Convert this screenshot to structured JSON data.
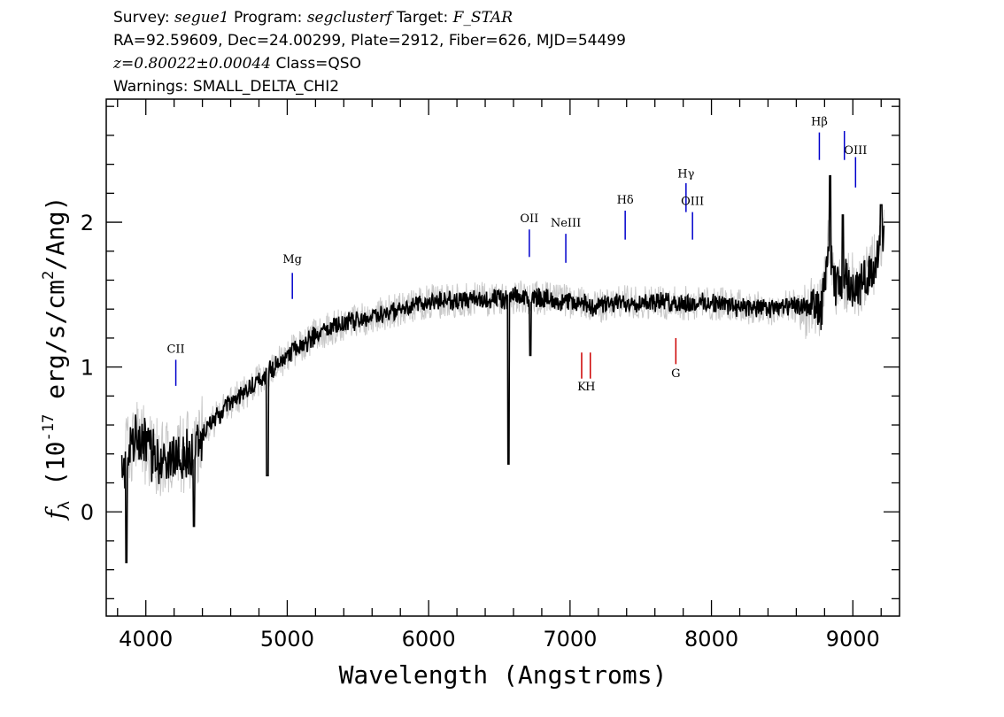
{
  "header": {
    "line1": {
      "survey_label": "Survey:",
      "survey": "segue1",
      "program_label": "Program:",
      "program": "segclusterf",
      "target_label": "Target:",
      "target": "F_STAR"
    },
    "line2": "RA=92.59609, Dec=24.00299, Plate=2912, Fiber=626, MJD=54499",
    "line3": {
      "redshift": "z=0.80022±0.00044",
      "class": "Class=QSO"
    },
    "line4": "Warnings: SMALL_DELTA_CHI2"
  },
  "chart_data": {
    "type": "line",
    "xlabel": "Wavelength (Angstroms)",
    "ylabel": "f_λ (10^-17 erg/s/cm^2/Ang)",
    "ylabel_parts": {
      "f": "f",
      "sub": "λ",
      "base": " (10",
      "exp": "-17",
      "mid": " erg/s/cm",
      "exp2": "2",
      "end": "/Ang)"
    },
    "xlim": [
      3720,
      9330
    ],
    "ylim": [
      -0.72,
      2.85
    ],
    "xticks": [
      4000,
      5000,
      6000,
      7000,
      8000,
      9000
    ],
    "xtick_labels": [
      "4000",
      "5000",
      "6000",
      "7000",
      "8000",
      "9000"
    ],
    "yticks": [
      0,
      1,
      2
    ],
    "ytick_labels": [
      "0",
      "1",
      "2"
    ],
    "grid": false,
    "colors": {
      "flux": "#000000",
      "noise": "#c8c8c8",
      "emission": "#0000cc",
      "absorption": "#cc0000"
    },
    "series": [
      {
        "role": "flux",
        "anchors_x": [
          3830,
          3870,
          3950,
          4050,
          4150,
          4250,
          4350,
          4450,
          4600,
          4800,
          5000,
          5200,
          5400,
          5600,
          5800,
          6000,
          6200,
          6400,
          6540,
          6600,
          6800,
          7000,
          7200,
          7400,
          7600,
          7800,
          8000,
          8200,
          8400,
          8600,
          8780,
          8830,
          8870,
          8950,
          9050,
          9150,
          9220
        ],
        "anchors_y": [
          0.25,
          0.42,
          0.5,
          0.4,
          0.35,
          0.4,
          0.45,
          0.6,
          0.75,
          0.9,
          1.08,
          1.22,
          1.3,
          1.35,
          1.4,
          1.45,
          1.46,
          1.47,
          1.46,
          1.48,
          1.48,
          1.45,
          1.42,
          1.45,
          1.45,
          1.44,
          1.44,
          1.42,
          1.4,
          1.42,
          1.4,
          1.85,
          1.55,
          1.6,
          1.55,
          1.7,
          1.9
        ],
        "features": [
          {
            "x": 6565,
            "y": 0.33
          },
          {
            "x": 6720,
            "y": 1.08
          },
          {
            "x": 8840,
            "y": 2.32
          },
          {
            "x": 8930,
            "y": 2.05
          },
          {
            "x": 9200,
            "y": 2.12
          },
          {
            "x": 3862,
            "y": -0.35
          },
          {
            "x": 4340,
            "y": -0.1
          },
          {
            "x": 4860,
            "y": 0.25
          }
        ]
      }
    ],
    "annotations": {
      "emission": [
        {
          "label": "CII",
          "x": 4212,
          "y0": 0.87,
          "y1": 1.05,
          "ly": 1.1
        },
        {
          "label": "Mg",
          "x": 5036,
          "y0": 1.47,
          "y1": 1.65,
          "ly": 1.72
        },
        {
          "label": "OII",
          "x": 6712,
          "y0": 1.76,
          "y1": 1.95,
          "ly": 2.0
        },
        {
          "label": "NeIII",
          "x": 6970,
          "y0": 1.72,
          "y1": 1.92,
          "ly": 1.97
        },
        {
          "label": "Hδ",
          "x": 7390,
          "y0": 1.88,
          "y1": 2.08,
          "ly": 2.13
        },
        {
          "label": "Hγ",
          "x": 7820,
          "y0": 2.07,
          "y1": 2.27,
          "ly": 2.31
        },
        {
          "label": "OIII",
          "x": 7866,
          "y0": 1.88,
          "y1": 2.07,
          "ly": 2.12
        },
        {
          "label": "Hβ",
          "x": 8763,
          "y0": 2.43,
          "y1": 2.62,
          "ly": 2.67
        },
        {
          "label": "OIII",
          "x": 9019,
          "y0": 2.24,
          "y1": 2.45,
          "ly": 2.47
        },
        {
          "label": "",
          "x": 8940,
          "y0": 2.43,
          "y1": 2.63,
          "ly": 2.7
        }
      ],
      "absorption": [
        {
          "label": "K",
          "x": 3934,
          "y0": 0.92,
          "y1": 1.1,
          "ly": 0.84
        },
        {
          "label": "H",
          "x": 3968,
          "y0": 0.92,
          "y1": 1.1,
          "ly": 0.84
        },
        {
          "label": "G",
          "x": 4304,
          "y0": 1.02,
          "y1": 1.2,
          "ly": 0.93
        }
      ],
      "abs_redshift_factor": 1.80022
    }
  }
}
